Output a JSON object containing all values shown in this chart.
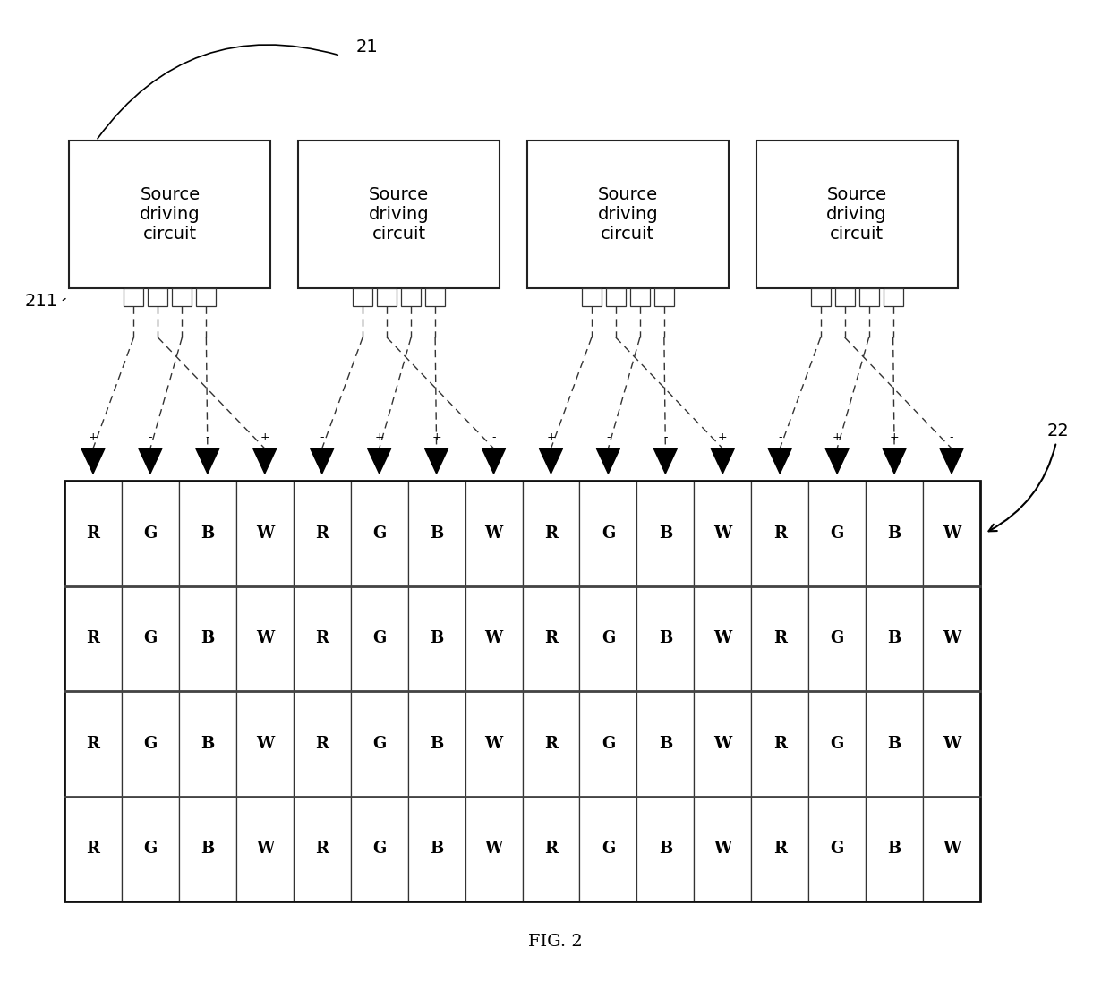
{
  "fig_width": 12.4,
  "fig_height": 10.97,
  "bg_color": "#ffffff",
  "title": "FIG. 2",
  "num_circuits": 4,
  "num_columns": 16,
  "pixel_labels": [
    "R",
    "G",
    "B",
    "W"
  ],
  "num_rows": 4,
  "label_21": "21",
  "label_211": "211",
  "label_22": "22",
  "circuit_text": "Source\ndriving\ncircuit",
  "polarity": [
    "+",
    "-",
    "-",
    "+",
    "-",
    "+",
    "+",
    "-",
    "+",
    "-",
    "-",
    "+",
    "-",
    "+",
    "+",
    "-"
  ]
}
